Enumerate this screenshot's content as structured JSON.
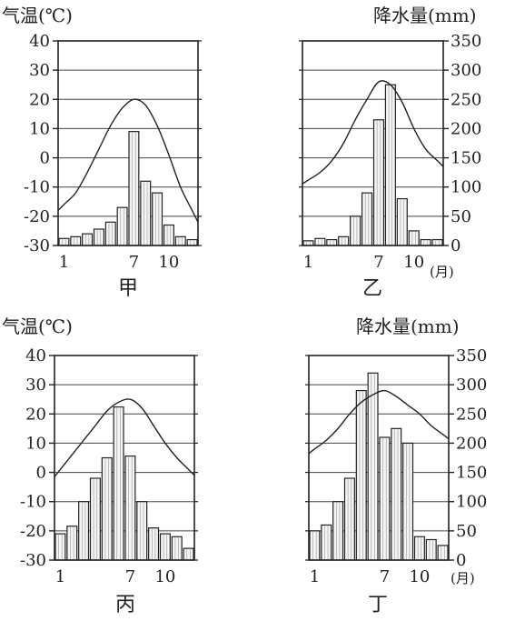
{
  "temp_axis_label": "气温(℃)",
  "precip_axis_label": "降水量(mm)",
  "month_unit": "(月)",
  "temp_ticks": [
    "40",
    "30",
    "20",
    "10",
    "0",
    "-10",
    "-20",
    "-30"
  ],
  "precip_ticks": [
    "350",
    "300",
    "250",
    "200",
    "150",
    "100",
    "50",
    "0"
  ],
  "month_ticks": [
    "1",
    "7",
    "10"
  ],
  "chart_data": [
    {
      "type": "bar",
      "name": "甲",
      "categories": [
        1,
        2,
        3,
        4,
        5,
        6,
        7,
        8,
        9,
        10,
        11,
        12
      ],
      "precip_mm": [
        12,
        15,
        20,
        28,
        40,
        65,
        195,
        110,
        90,
        35,
        15,
        10
      ],
      "temp_c": [
        -16,
        -12,
        -5,
        3,
        11,
        17,
        20,
        18,
        11,
        1,
        -10,
        -18
      ],
      "temp_ylim": [
        -30,
        40
      ],
      "precip_ylim": [
        0,
        350
      ],
      "grid": true
    },
    {
      "type": "bar",
      "name": "乙",
      "categories": [
        1,
        2,
        3,
        4,
        5,
        6,
        7,
        8,
        9,
        10,
        11,
        12
      ],
      "precip_mm": [
        8,
        12,
        10,
        15,
        50,
        90,
        215,
        275,
        80,
        25,
        10,
        10
      ],
      "temp_c": [
        112,
        125,
        145,
        175,
        215,
        250,
        280,
        275,
        245,
        200,
        165,
        145
      ],
      "temp_ylim": [
        -30,
        40
      ],
      "precip_ylim": [
        0,
        350
      ],
      "grid": true
    },
    {
      "type": "bar",
      "name": "丙",
      "categories": [
        1,
        2,
        3,
        4,
        5,
        6,
        7,
        8,
        9,
        10,
        11,
        12
      ],
      "precip_mm": [
        45,
        58,
        100,
        140,
        175,
        262,
        178,
        100,
        55,
        45,
        40,
        20
      ],
      "temp_c": [
        1,
        6,
        11,
        16,
        21,
        24,
        25,
        22,
        16,
        10,
        5,
        1
      ],
      "temp_ylim": [
        -30,
        40
      ],
      "precip_ylim": [
        0,
        350
      ],
      "grid": true
    },
    {
      "type": "bar",
      "name": "丁",
      "categories": [
        1,
        2,
        3,
        4,
        5,
        6,
        7,
        8,
        9,
        10,
        11,
        12
      ],
      "precip_mm": [
        50,
        60,
        100,
        140,
        290,
        320,
        210,
        225,
        200,
        40,
        35,
        25
      ],
      "temp_c": [
        190,
        205,
        225,
        250,
        270,
        283,
        290,
        280,
        265,
        250,
        230,
        215
      ],
      "temp_ylim": [
        -30,
        40
      ],
      "precip_ylim": [
        0,
        350
      ],
      "grid": true
    }
  ]
}
